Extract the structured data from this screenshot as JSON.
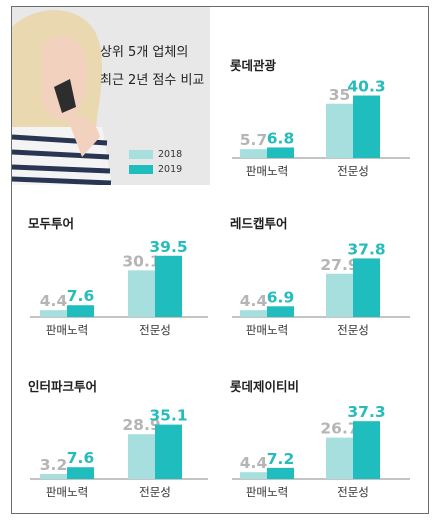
{
  "colors": {
    "y2018": "#a7dede",
    "y2019": "#1fbdbd",
    "axis": "#888888",
    "val2018": "#b5b5b5",
    "val2019": "#27bcbc"
  },
  "header": {
    "title_line1": "상위 5개 업체의",
    "title_line2": "최근 2년 점수 비교",
    "legend": [
      {
        "label": "2018"
      },
      {
        "label": "2019"
      }
    ]
  },
  "chart_data": [
    {
      "type": "bar",
      "title": "롯데관광",
      "categories": [
        "판매노력",
        "전문성"
      ],
      "series": [
        {
          "name": "2018",
          "values": [
            5.7,
            35
          ]
        },
        {
          "name": "2019",
          "values": [
            6.8,
            40.3
          ]
        }
      ],
      "value_labels": {
        "2018": [
          "5.7",
          "35"
        ],
        "2019": [
          "6.8",
          "40.3"
        ]
      }
    },
    {
      "type": "bar",
      "title": "모두투어",
      "categories": [
        "판매노력",
        "전문성"
      ],
      "series": [
        {
          "name": "2018",
          "values": [
            4.4,
            30.1
          ]
        },
        {
          "name": "2019",
          "values": [
            7.6,
            39.5
          ]
        }
      ],
      "value_labels": {
        "2018": [
          "4.4",
          "30.1"
        ],
        "2019": [
          "7.6",
          "39.5"
        ]
      }
    },
    {
      "type": "bar",
      "title": "레드캡투어",
      "categories": [
        "판매노력",
        "전문성"
      ],
      "series": [
        {
          "name": "2018",
          "values": [
            4.4,
            27.9
          ]
        },
        {
          "name": "2019",
          "values": [
            6.9,
            37.8
          ]
        }
      ],
      "value_labels": {
        "2018": [
          "4.4",
          "27.9"
        ],
        "2019": [
          "6.9",
          "37.8"
        ]
      }
    },
    {
      "type": "bar",
      "title": "인터파크투어",
      "categories": [
        "판매노력",
        "전문성"
      ],
      "series": [
        {
          "name": "2018",
          "values": [
            3.2,
            28.9
          ]
        },
        {
          "name": "2019",
          "values": [
            7.6,
            35.1
          ]
        }
      ],
      "value_labels": {
        "2018": [
          "3.2",
          "28.9"
        ],
        "2019": [
          "7.6",
          "35.1"
        ]
      }
    },
    {
      "type": "bar",
      "title": "롯데제이티비",
      "categories": [
        "판매노력",
        "전문성"
      ],
      "series": [
        {
          "name": "2018",
          "values": [
            4.4,
            26.7
          ]
        },
        {
          "name": "2019",
          "values": [
            7.2,
            37.3
          ]
        }
      ],
      "value_labels": {
        "2018": [
          "4.4",
          "26.7"
        ],
        "2019": [
          "7.2",
          "37.3"
        ]
      }
    }
  ]
}
